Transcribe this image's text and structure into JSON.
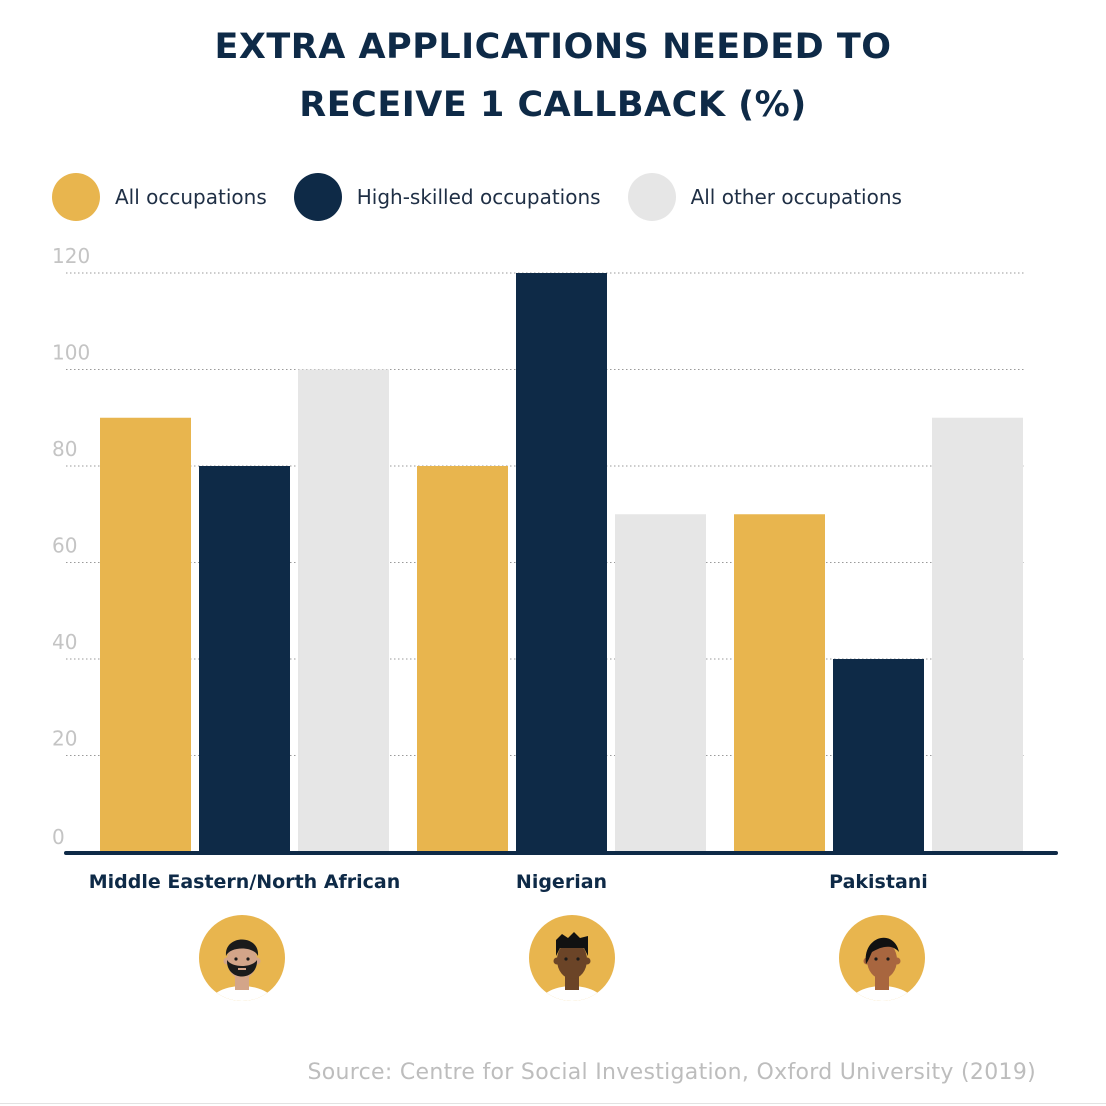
{
  "title_lines": [
    "EXTRA APPLICATIONS NEEDED TO",
    "RECEIVE 1 CALLBACK (%)"
  ],
  "legend": [
    {
      "label": "All occupations",
      "color": "#e8b54e"
    },
    {
      "label": "High-skilled occupations",
      "color": "#0e2a47"
    },
    {
      "label": "All other occupations",
      "color": "#e6e6e6"
    }
  ],
  "source": "Source: Centre for Social Investigation, Oxford University (2019)",
  "chart_data": {
    "type": "bar",
    "title": "EXTRA APPLICATIONS NEEDED TO RECEIVE 1 CALLBACK (%)",
    "categories": [
      "Middle Eastern/North African",
      "Nigerian",
      "Pakistani"
    ],
    "series": [
      {
        "name": "All occupations",
        "color": "#e8b54e",
        "values": [
          90,
          80,
          70
        ]
      },
      {
        "name": "High-skilled occupations",
        "color": "#0e2a47",
        "values": [
          80,
          120,
          40
        ]
      },
      {
        "name": "All other occupations",
        "color": "#e6e6e6",
        "values": [
          100,
          70,
          90
        ]
      }
    ],
    "yticks": [
      0,
      20,
      40,
      60,
      80,
      100,
      120
    ],
    "ylim": [
      0,
      120
    ],
    "xlabel": "",
    "ylabel": "",
    "grid": true,
    "legend_position": "top-left"
  },
  "avatars": [
    {
      "name": "middle-eastern-avatar",
      "skin": "#d3a589",
      "hair": "#1b1b1b",
      "beard": true
    },
    {
      "name": "nigerian-avatar",
      "skin": "#6b4427",
      "hair": "#111111",
      "beard": false
    },
    {
      "name": "pakistani-avatar",
      "skin": "#a8663f",
      "hair": "#111111",
      "beard": false
    }
  ],
  "avatar_bg": "#e8b54e"
}
